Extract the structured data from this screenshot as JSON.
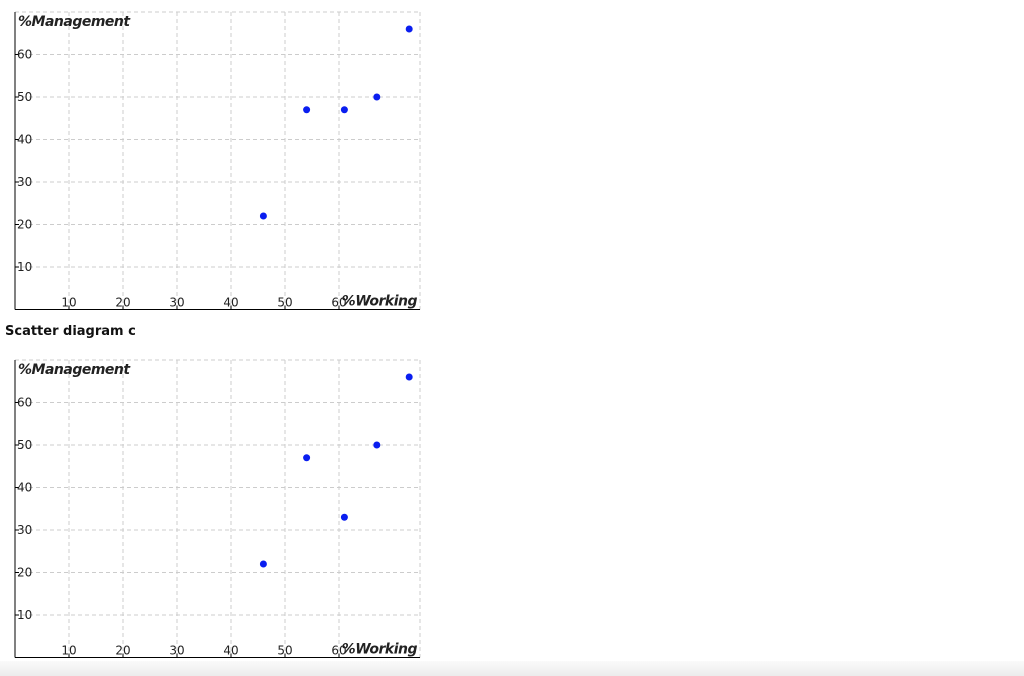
{
  "caption": "Scatter diagram c",
  "chart_data": [
    {
      "type": "scatter",
      "xlabel": "%Working",
      "ylabel": "%Management",
      "x": [
        46,
        54,
        61,
        67,
        73
      ],
      "values": [
        22,
        47,
        47,
        50,
        66
      ],
      "color": "#0a1ef0",
      "xlim": [
        0,
        75
      ],
      "ylim": [
        0,
        70
      ],
      "xticks": [
        10,
        20,
        30,
        40,
        50,
        60
      ],
      "yticks": [
        10,
        20,
        30,
        40,
        50,
        60
      ],
      "grid": true
    },
    {
      "type": "scatter",
      "xlabel": "%Working",
      "ylabel": "%Management",
      "x": [
        46,
        54,
        61,
        67,
        73
      ],
      "values": [
        22,
        47,
        33,
        50,
        66
      ],
      "color": "#0a1ef0",
      "xlim": [
        0,
        75
      ],
      "ylim": [
        0,
        70
      ],
      "xticks": [
        10,
        20,
        30,
        40,
        50,
        60
      ],
      "yticks": [
        10,
        20,
        30,
        40,
        50,
        60
      ],
      "grid": true
    }
  ]
}
